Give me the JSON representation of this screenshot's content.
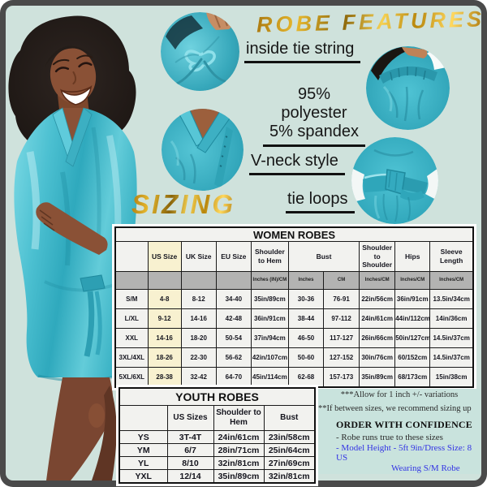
{
  "features": {
    "title": "ROBE FEATURES",
    "inside_tie": "inside tie string",
    "material_line1": "95% polyester",
    "material_line2": "5% spandex",
    "vneck": "V-neck style",
    "tie_loops": "tie loops"
  },
  "sizing_title": "SIZING",
  "women_table": {
    "title": "WOMEN ROBES",
    "col_headers": [
      "",
      "US Size",
      "UK Size",
      "EU Size",
      "Shoulder to Hem",
      "Bust",
      "Shoulder to Shoulder",
      "Hips",
      "Sleeve Length"
    ],
    "col_spans": [
      1,
      1,
      1,
      1,
      1,
      2,
      1,
      1,
      1
    ],
    "sub_headers": [
      "",
      "",
      "",
      "",
      "Inches (IN)/CM",
      "Inches",
      "CM",
      "Inches/CM",
      "Inches/CM",
      "Inches/CM"
    ],
    "rows": [
      [
        "S/M",
        "4-8",
        "8-12",
        "34-40",
        "35in/89cm",
        "30-36",
        "76-91",
        "22in/56cm",
        "36in/91cm",
        "13.5in/34cm"
      ],
      [
        "L/XL",
        "9-12",
        "14-16",
        "42-48",
        "36in/91cm",
        "38-44",
        "97-112",
        "24in/61cm",
        "44in/112cm",
        "14in/36cm"
      ],
      [
        "XXL",
        "14-16",
        "18-20",
        "50-54",
        "37in/94cm",
        "46-50",
        "117-127",
        "26in/66cm",
        "50in/127cm",
        "14.5in/37cm"
      ],
      [
        "3XL/4XL",
        "18-26",
        "22-30",
        "56-62",
        "42in/107cm",
        "50-60",
        "127-152",
        "30in/76cm",
        "60/152cm",
        "14.5in/37cm"
      ],
      [
        "5XL/6XL",
        "28-38",
        "32-42",
        "64-70",
        "45in/114cm",
        "62-68",
        "157-173",
        "35in/89cm",
        "68/173cm",
        "15in/38cm"
      ]
    ]
  },
  "youth_table": {
    "title": "YOUTH ROBES",
    "col_headers": [
      "",
      "US Sizes",
      "Shoulder to Hem",
      "Bust"
    ],
    "rows": [
      [
        "YS",
        "3T-4T",
        "24in/61cm",
        "23in/58cm"
      ],
      [
        "YM",
        "6/7",
        "28in/71cm",
        "25in/64cm"
      ],
      [
        "YL",
        "8/10",
        "32in/81cm",
        "27in/69cm"
      ],
      [
        "YXL",
        "12/14",
        "35in/89cm",
        "32in/81cm"
      ]
    ]
  },
  "notes": {
    "variation": "***Allow for 1 inch +/- variations",
    "between_sizes": "**If between sizes, we recommend sizing up",
    "confidence_title": "ORDER WITH CONFIDENCE",
    "line_true_sizes": "- Robe runs true to these sizes",
    "line_model": "- Model Height - 5ft 9in/Dress Size: 8 US",
    "line_wearing": "Wearing S/M Robe"
  },
  "colors": {
    "background_mint": "#cfe2dc",
    "robe_teal": "#45b9c9",
    "gold_text": "#d8a119",
    "note_blue": "#3434e4",
    "frame_border": "#4a4a4a",
    "us_size_highlight": "#f8f1d0",
    "subheader_gray": "#b3b3b2"
  }
}
